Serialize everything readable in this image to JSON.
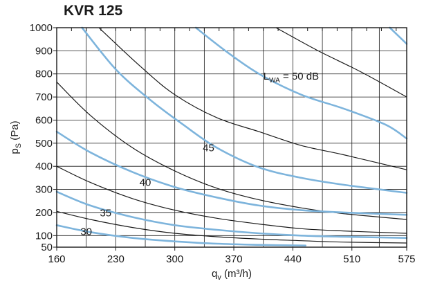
{
  "chart_data": {
    "type": "line",
    "title": "KVR 125",
    "xlabel": "q",
    "xlabel_sub": "v",
    "xlabel_unit": " (m³/h)",
    "ylabel": "p",
    "ylabel_sub": "S",
    "ylabel_unit": " (Pa)",
    "xlim": [
      160,
      575
    ],
    "ylim": [
      50,
      1000
    ],
    "x_ticks": [
      160,
      230,
      300,
      370,
      440,
      510,
      575
    ],
    "y_ticks": [
      50,
      100,
      200,
      300,
      400,
      500,
      600,
      700,
      800,
      900,
      1000
    ],
    "grid": true,
    "colors": {
      "sound_curve": "#7db4dc",
      "system_curve": "#1a1a1a",
      "grid": "#1a1a1a"
    },
    "sound_curves": [
      {
        "label": "30",
        "points": [
          [
            160,
            145
          ],
          [
            200,
            115
          ],
          [
            250,
            90
          ],
          [
            300,
            75
          ],
          [
            350,
            65
          ],
          [
            400,
            60
          ],
          [
            455,
            57
          ]
        ]
      },
      {
        "label": "35",
        "points": [
          [
            160,
            290
          ],
          [
            200,
            230
          ],
          [
            250,
            180
          ],
          [
            300,
            145
          ],
          [
            350,
            125
          ],
          [
            400,
            110
          ],
          [
            450,
            100
          ],
          [
            500,
            95
          ],
          [
            575,
            90
          ]
        ]
      },
      {
        "label": "40",
        "points": [
          [
            160,
            550
          ],
          [
            200,
            460
          ],
          [
            250,
            375
          ],
          [
            300,
            310
          ],
          [
            350,
            265
          ],
          [
            400,
            230
          ],
          [
            450,
            210
          ],
          [
            500,
            200
          ],
          [
            575,
            190
          ]
        ]
      },
      {
        "label": "45",
        "points": [
          [
            190,
            1000
          ],
          [
            230,
            820
          ],
          [
            270,
            690
          ],
          [
            310,
            580
          ],
          [
            350,
            480
          ],
          [
            400,
            395
          ],
          [
            450,
            350
          ],
          [
            500,
            320
          ],
          [
            575,
            285
          ]
        ]
      },
      {
        "label": "50",
        "name": "L_WA = 50 dB",
        "points": [
          [
            325,
            1000
          ],
          [
            360,
            900
          ],
          [
            400,
            800
          ],
          [
            450,
            710
          ],
          [
            500,
            650
          ],
          [
            550,
            580
          ],
          [
            575,
            520
          ]
        ]
      },
      {
        "label": "",
        "points": [
          [
            555,
            1000
          ],
          [
            575,
            930
          ]
        ]
      }
    ],
    "system_curves": [
      {
        "points": [
          [
            160,
            765
          ],
          [
            200,
            620
          ],
          [
            250,
            480
          ],
          [
            300,
            380
          ],
          [
            350,
            305
          ],
          [
            400,
            255
          ],
          [
            450,
            220
          ],
          [
            500,
            195
          ],
          [
            575,
            170
          ]
        ]
      },
      {
        "points": [
          [
            160,
            400
          ],
          [
            200,
            330
          ],
          [
            250,
            260
          ],
          [
            300,
            210
          ],
          [
            350,
            175
          ],
          [
            400,
            150
          ],
          [
            450,
            130
          ],
          [
            500,
            120
          ],
          [
            575,
            110
          ]
        ]
      },
      {
        "points": [
          [
            160,
            205
          ],
          [
            200,
            170
          ],
          [
            250,
            135
          ],
          [
            300,
            110
          ],
          [
            350,
            95
          ],
          [
            400,
            85
          ],
          [
            450,
            78
          ],
          [
            500,
            72
          ],
          [
            575,
            68
          ]
        ]
      },
      {
        "points": [
          [
            210,
            1000
          ],
          [
            260,
            830
          ],
          [
            300,
            710
          ],
          [
            350,
            610
          ],
          [
            400,
            550
          ],
          [
            450,
            490
          ],
          [
            500,
            450
          ],
          [
            575,
            385
          ]
        ]
      },
      {
        "points": [
          [
            420,
            1000
          ],
          [
            470,
            900
          ],
          [
            520,
            810
          ],
          [
            575,
            700
          ]
        ]
      }
    ],
    "annotations": [
      {
        "text_main": "L",
        "text_sub": "WA",
        "text_rest": " = 50 dB",
        "x": 405,
        "y": 790
      },
      {
        "text": "45",
        "x": 340,
        "y": 480
      },
      {
        "text": "40",
        "x": 265,
        "y": 330
      },
      {
        "text": "35",
        "x": 218,
        "y": 198
      },
      {
        "text": "30",
        "x": 195,
        "y": 118
      }
    ]
  }
}
